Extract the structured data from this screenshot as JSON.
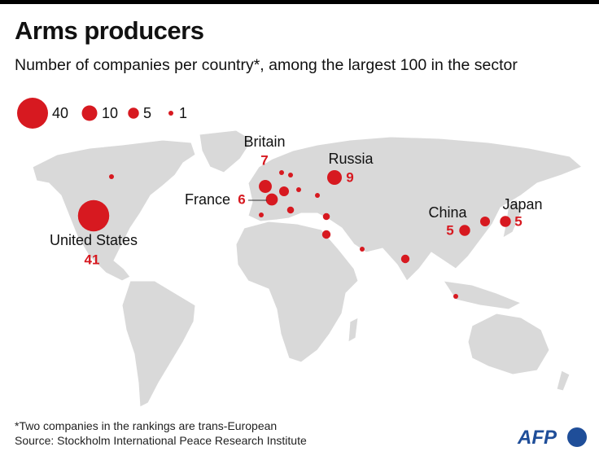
{
  "title": "Arms producers",
  "subtitle": "Number of companies per country*, among the largest 100 in the sector",
  "legend": [
    40,
    10,
    5,
    1
  ],
  "countries": [
    {
      "name": "United States",
      "value": 41
    },
    {
      "name": "Britain",
      "value": 7
    },
    {
      "name": "France",
      "value": 6
    },
    {
      "name": "Russia",
      "value": 9
    },
    {
      "name": "China",
      "value": 5
    },
    {
      "name": "Japan",
      "value": 5
    }
  ],
  "unlabeled_values": [
    1,
    4,
    1,
    1,
    1,
    1,
    2,
    1,
    2,
    3,
    1,
    3,
    1,
    4
  ],
  "footnote": "*Two companies in the rankings are trans-European",
  "source": "Source: Stockholm International Peace Research Institute",
  "logo": "AFP",
  "bubble_color": "#d71920"
}
